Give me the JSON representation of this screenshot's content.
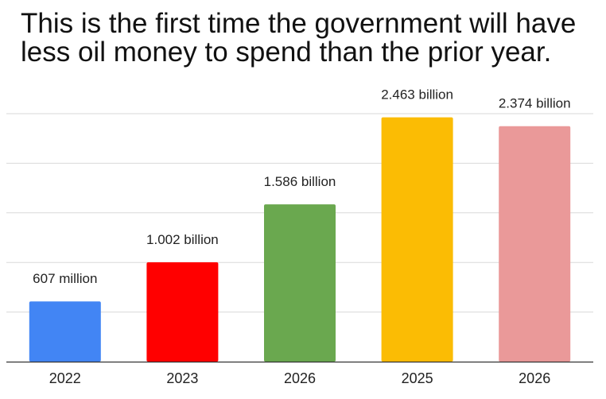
{
  "title_lines": [
    "This is the first time the government will have",
    "less oil money to spend than the prior year."
  ],
  "chart_data": {
    "type": "bar",
    "title": "This is the first time the government will have less oil money to spend than the prior year.",
    "categories": [
      "2022",
      "2023",
      "2026",
      "2025",
      "2026"
    ],
    "values": [
      607,
      1002,
      1586,
      2463,
      2374
    ],
    "unit": "million",
    "data_labels": [
      "607 million",
      "1.002 billion",
      "1.586 billion",
      "2.463 billion",
      "2.374 billion"
    ],
    "colors": [
      "#4285f4",
      "#ff0000",
      "#6aa84f",
      "#fbbc04",
      "#ea9999"
    ],
    "ylim": [
      0,
      2500
    ],
    "yticks": [
      0,
      500,
      1000,
      1500,
      2000,
      2500
    ],
    "y_tick_labels_visible": false,
    "grid": true,
    "legend": "none",
    "xlabel": "",
    "ylabel": ""
  }
}
